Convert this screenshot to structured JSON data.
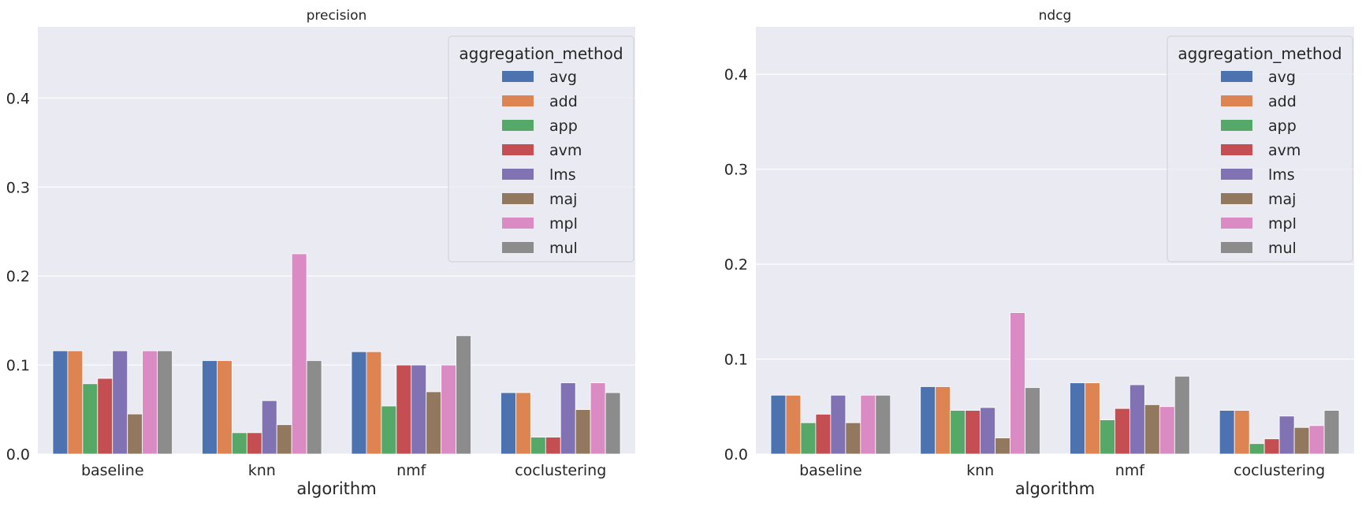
{
  "chart_data": [
    {
      "type": "bar",
      "title": "precision",
      "xlabel": "algorithm",
      "ylabel": "",
      "ylim": [
        0,
        0.48
      ],
      "yticks": [
        "0.0",
        "0.1",
        "0.2",
        "0.3",
        "0.4"
      ],
      "categories": [
        "baseline",
        "knn",
        "nmf",
        "coclustering"
      ],
      "legend": {
        "title": "aggregation_method",
        "position": "top-right"
      },
      "grid": true,
      "series": [
        {
          "name": "avg",
          "color": "#4c72b0",
          "values": [
            0.116,
            0.105,
            0.115,
            0.069
          ]
        },
        {
          "name": "add",
          "color": "#dd8452",
          "values": [
            0.116,
            0.105,
            0.115,
            0.069
          ]
        },
        {
          "name": "app",
          "color": "#55a868",
          "values": [
            0.079,
            0.024,
            0.054,
            0.019
          ]
        },
        {
          "name": "avm",
          "color": "#c44e52",
          "values": [
            0.085,
            0.024,
            0.1,
            0.019
          ]
        },
        {
          "name": "lms",
          "color": "#8172b3",
          "values": [
            0.116,
            0.06,
            0.1,
            0.08
          ]
        },
        {
          "name": "maj",
          "color": "#937860",
          "values": [
            0.045,
            0.033,
            0.07,
            0.05
          ]
        },
        {
          "name": "mpl",
          "color": "#da8bc3",
          "values": [
            0.116,
            0.225,
            0.1,
            0.08
          ]
        },
        {
          "name": "mul",
          "color": "#8c8c8c",
          "values": [
            0.116,
            0.105,
            0.133,
            0.069
          ]
        }
      ]
    },
    {
      "type": "bar",
      "title": "ndcg",
      "xlabel": "algorithm",
      "ylabel": "",
      "ylim": [
        0,
        0.45
      ],
      "yticks": [
        "0.0",
        "0.1",
        "0.2",
        "0.3",
        "0.4"
      ],
      "categories": [
        "baseline",
        "knn",
        "nmf",
        "coclustering"
      ],
      "legend": {
        "title": "aggregation_method",
        "position": "top-right"
      },
      "grid": true,
      "series": [
        {
          "name": "avg",
          "color": "#4c72b0",
          "values": [
            0.062,
            0.071,
            0.075,
            0.046
          ]
        },
        {
          "name": "add",
          "color": "#dd8452",
          "values": [
            0.062,
            0.071,
            0.075,
            0.046
          ]
        },
        {
          "name": "app",
          "color": "#55a868",
          "values": [
            0.033,
            0.046,
            0.036,
            0.011
          ]
        },
        {
          "name": "avm",
          "color": "#c44e52",
          "values": [
            0.042,
            0.046,
            0.048,
            0.016
          ]
        },
        {
          "name": "lms",
          "color": "#8172b3",
          "values": [
            0.062,
            0.049,
            0.073,
            0.04
          ]
        },
        {
          "name": "maj",
          "color": "#937860",
          "values": [
            0.033,
            0.017,
            0.052,
            0.028
          ]
        },
        {
          "name": "mpl",
          "color": "#da8bc3",
          "values": [
            0.062,
            0.149,
            0.05,
            0.03
          ]
        },
        {
          "name": "mul",
          "color": "#8c8c8c",
          "values": [
            0.062,
            0.07,
            0.082,
            0.046
          ]
        }
      ]
    }
  ]
}
